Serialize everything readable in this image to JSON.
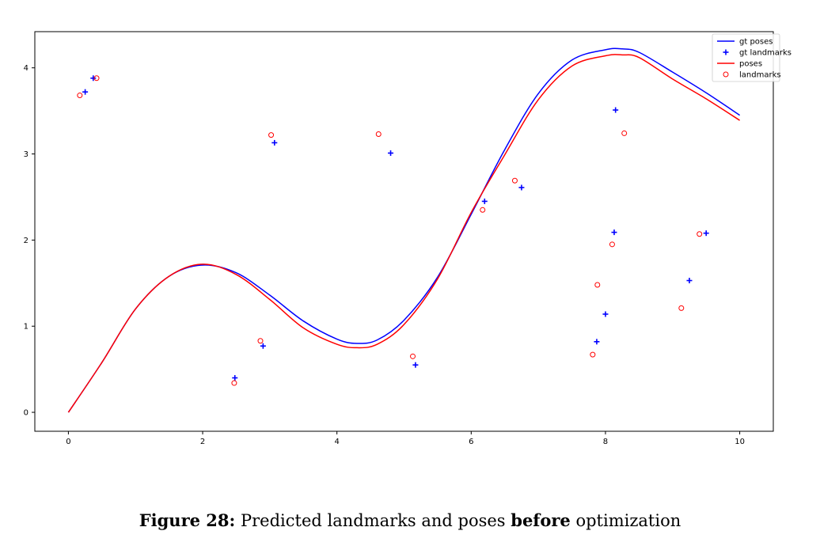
{
  "caption": {
    "figure_label": "Figure 28:",
    "text_before": "Predicted landmarks and poses",
    "bold_word": "before",
    "text_after": "optimization"
  },
  "chart_data": {
    "type": "line",
    "xlim": [
      -0.5,
      10.5
    ],
    "ylim": [
      -0.22,
      4.42
    ],
    "xticks": [
      0,
      2,
      4,
      6,
      8,
      10
    ],
    "yticks": [
      0,
      1,
      2,
      3,
      4
    ],
    "grid": false,
    "legend_position": "top-right",
    "colors": {
      "gt": "#0000ff",
      "est": "#ff0000"
    },
    "series": [
      {
        "name": "gt poses",
        "kind": "line",
        "color": "#0000ff",
        "x": [
          0,
          0.5,
          1.0,
          1.5,
          2.0,
          2.5,
          3.0,
          3.5,
          4.0,
          4.3,
          4.6,
          5.0,
          5.5,
          6.0,
          6.5,
          7.0,
          7.5,
          8.0,
          8.25,
          8.5,
          9.0,
          9.5,
          10.0
        ],
        "y": [
          0,
          0.58,
          1.2,
          1.58,
          1.71,
          1.62,
          1.36,
          1.06,
          0.85,
          0.8,
          0.84,
          1.07,
          1.57,
          2.3,
          3.05,
          3.7,
          4.09,
          4.21,
          4.22,
          4.18,
          3.95,
          3.71,
          3.45
        ]
      },
      {
        "name": "gt landmarks",
        "kind": "scatter",
        "marker": "+",
        "color": "#0000ff",
        "x": [
          0.37,
          0.25,
          3.07,
          4.8,
          2.48,
          2.9,
          5.17,
          6.2,
          6.75,
          8.15,
          8.13,
          8.0,
          7.87,
          9.25,
          9.5
        ],
        "y": [
          3.88,
          3.72,
          3.13,
          3.01,
          0.4,
          0.77,
          0.55,
          2.45,
          2.61,
          3.51,
          2.09,
          1.14,
          0.82,
          1.53,
          2.08
        ]
      },
      {
        "name": "poses",
        "kind": "line",
        "color": "#ff0000",
        "x": [
          0,
          0.5,
          1.0,
          1.5,
          2.0,
          2.5,
          3.0,
          3.5,
          4.0,
          4.3,
          4.6,
          5.0,
          5.5,
          6.0,
          6.5,
          7.0,
          7.5,
          8.0,
          8.25,
          8.5,
          9.0,
          9.5,
          10.0
        ],
        "y": [
          0,
          0.58,
          1.2,
          1.58,
          1.72,
          1.6,
          1.31,
          0.98,
          0.79,
          0.75,
          0.79,
          1.02,
          1.55,
          2.32,
          2.99,
          3.63,
          4.02,
          4.14,
          4.15,
          4.12,
          3.87,
          3.64,
          3.39
        ]
      },
      {
        "name": "landmarks",
        "kind": "scatter",
        "marker": "o",
        "color": "#ff0000",
        "x": [
          0.42,
          0.17,
          3.02,
          4.62,
          2.47,
          2.86,
          5.13,
          6.17,
          6.65,
          8.28,
          8.1,
          7.88,
          7.81,
          9.13,
          9.4
        ],
        "y": [
          3.88,
          3.68,
          3.22,
          3.23,
          0.34,
          0.83,
          0.65,
          2.35,
          2.69,
          3.24,
          1.95,
          1.48,
          0.67,
          1.21,
          2.07
        ]
      }
    ]
  }
}
